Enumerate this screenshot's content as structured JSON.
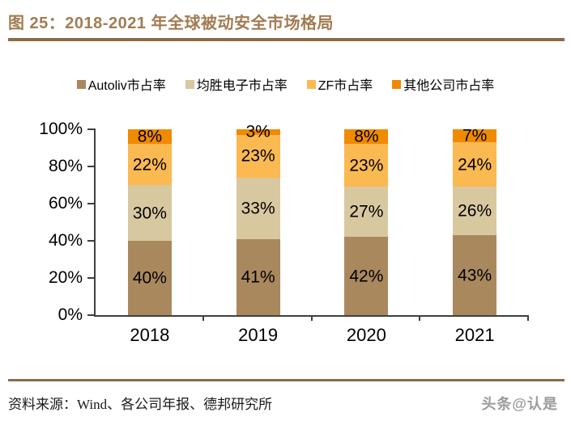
{
  "header": {
    "title": "图 25：2018-2021 年全球被动安全市场格局"
  },
  "chart_data": {
    "type": "bar",
    "stacked": true,
    "percent": true,
    "title": "2018-2021 年全球被动安全市场格局",
    "categories": [
      "2018",
      "2019",
      "2020",
      "2021"
    ],
    "series": [
      {
        "name": "Autoliv市占率",
        "color": "#AA885E",
        "values": [
          40,
          41,
          42,
          43
        ]
      },
      {
        "name": "均胜电子市占率",
        "color": "#D8C8A0",
        "values": [
          30,
          33,
          27,
          26
        ]
      },
      {
        "name": "ZF市占率",
        "color": "#FBB951",
        "values": [
          22,
          23,
          23,
          24
        ]
      },
      {
        "name": "其他公司市占率",
        "color": "#F08A00",
        "values": [
          8,
          3,
          8,
          7
        ]
      }
    ],
    "value_suffix": "%",
    "y_ticks": [
      "0%",
      "20%",
      "40%",
      "60%",
      "80%",
      "100%"
    ],
    "ylim": [
      0,
      100
    ],
    "legend_position": "top",
    "grid": false
  },
  "footer": {
    "source": "资料来源：Wind、各公司年报、德邦研究所",
    "watermark": "头条@认是"
  },
  "colors": {
    "title": "#A17C52",
    "rule": "#8A6C4C",
    "axis": "#3F3F3F",
    "label": "#000000"
  }
}
